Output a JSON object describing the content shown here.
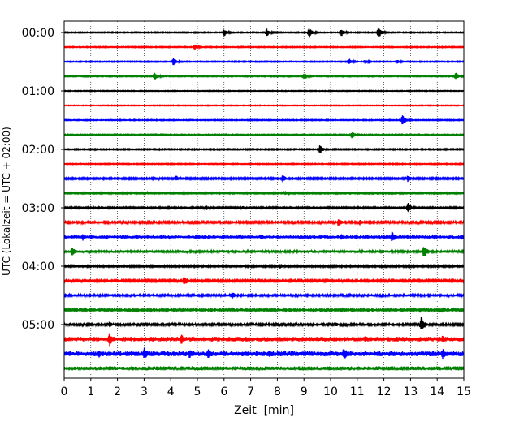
{
  "chart_data": {
    "type": "line",
    "title": "",
    "xlabel": "Zeit  [min]",
    "ylabel": "UTC (Lokalzeit = UTC + 02:00)",
    "xlim": [
      0,
      15
    ],
    "x_ticks": [
      "0",
      "1",
      "2",
      "3",
      "4",
      "5",
      "6",
      "7",
      "8",
      "9",
      "10",
      "11",
      "12",
      "13",
      "14",
      "15"
    ],
    "y_tick_labels": [
      "00:00",
      "01:00",
      "02:00",
      "03:00",
      "04:00",
      "05:00"
    ],
    "y_tick_rows": [
      0,
      4,
      8,
      12,
      16,
      20
    ],
    "grid": "vertical dotted",
    "row_interval_minutes": 15,
    "rows": [
      {
        "start": "00:00",
        "color": "#000000",
        "noise": 0.6,
        "events": [
          [
            6.0,
            5
          ],
          [
            7.6,
            5
          ],
          [
            9.2,
            7
          ],
          [
            10.4,
            5
          ],
          [
            11.8,
            7
          ]
        ]
      },
      {
        "start": "00:15",
        "color": "#ff0000",
        "noise": 0.6,
        "events": [
          [
            4.9,
            4
          ]
        ]
      },
      {
        "start": "00:30",
        "color": "#0000ff",
        "noise": 0.6,
        "events": [
          [
            4.1,
            5
          ],
          [
            10.7,
            4
          ],
          [
            11.3,
            3
          ],
          [
            12.5,
            3
          ]
        ]
      },
      {
        "start": "00:45",
        "color": "#008000",
        "noise": 0.6,
        "events": [
          [
            3.4,
            5
          ],
          [
            9.0,
            5
          ],
          [
            14.7,
            5
          ]
        ]
      },
      {
        "start": "01:00",
        "color": "#000000",
        "noise": 0.5,
        "events": []
      },
      {
        "start": "01:15",
        "color": "#ff0000",
        "noise": 0.5,
        "events": []
      },
      {
        "start": "01:30",
        "color": "#0000ff",
        "noise": 0.6,
        "events": [
          [
            12.7,
            7
          ]
        ]
      },
      {
        "start": "01:45",
        "color": "#008000",
        "noise": 0.6,
        "events": [
          [
            10.8,
            5
          ]
        ]
      },
      {
        "start": "02:00",
        "color": "#000000",
        "noise": 0.7,
        "events": [
          [
            9.6,
            6
          ]
        ]
      },
      {
        "start": "02:15",
        "color": "#ff0000",
        "noise": 0.6,
        "events": []
      },
      {
        "start": "02:30",
        "color": "#0000ff",
        "noise": 1.0,
        "events": [
          [
            4.2,
            4
          ],
          [
            8.2,
            5
          ],
          [
            12.9,
            5
          ]
        ]
      },
      {
        "start": "02:45",
        "color": "#008000",
        "noise": 0.8,
        "events": [
          [
            3.0,
            3
          ],
          [
            8.3,
            3
          ]
        ]
      },
      {
        "start": "03:00",
        "color": "#000000",
        "noise": 0.9,
        "events": [
          [
            5.3,
            4
          ],
          [
            6.7,
            3
          ],
          [
            12.9,
            7
          ]
        ]
      },
      {
        "start": "03:15",
        "color": "#ff0000",
        "noise": 1.3,
        "events": [
          [
            10.3,
            6
          ],
          [
            11.1,
            4
          ]
        ]
      },
      {
        "start": "03:30",
        "color": "#0000ff",
        "noise": 1.6,
        "events": [
          [
            0.7,
            5
          ],
          [
            2.3,
            3
          ],
          [
            7.4,
            4
          ],
          [
            10.4,
            4
          ],
          [
            12.3,
            8
          ],
          [
            14.9,
            4
          ]
        ]
      },
      {
        "start": "03:45",
        "color": "#008000",
        "noise": 1.6,
        "events": [
          [
            0.3,
            6
          ],
          [
            13.5,
            9
          ]
        ]
      },
      {
        "start": "04:00",
        "color": "#000000",
        "noise": 1.0,
        "events": [
          [
            8.1,
            4
          ]
        ]
      },
      {
        "start": "04:15",
        "color": "#ff0000",
        "noise": 1.2,
        "events": [
          [
            4.5,
            7
          ],
          [
            5.0,
            3
          ]
        ]
      },
      {
        "start": "04:30",
        "color": "#0000ff",
        "noise": 1.4,
        "events": [
          [
            6.3,
            5
          ]
        ]
      },
      {
        "start": "04:45",
        "color": "#008000",
        "noise": 1.3,
        "events": [
          [
            5.5,
            3
          ]
        ]
      },
      {
        "start": "05:00",
        "color": "#000000",
        "noise": 1.3,
        "events": [
          [
            1.7,
            4
          ],
          [
            10.2,
            3
          ],
          [
            13.4,
            10
          ]
        ]
      },
      {
        "start": "05:15",
        "color": "#ff0000",
        "noise": 2.8,
        "events": [
          [
            1.7,
            9
          ],
          [
            4.4,
            7
          ],
          [
            11.3,
            4
          ],
          [
            14.2,
            5
          ]
        ]
      },
      {
        "start": "05:30",
        "color": "#0000ff",
        "noise": 3.0,
        "events": [
          [
            1.3,
            5
          ],
          [
            3.0,
            9
          ],
          [
            4.7,
            6
          ],
          [
            5.4,
            6
          ],
          [
            7.7,
            5
          ],
          [
            10.5,
            9
          ],
          [
            14.2,
            7
          ]
        ]
      },
      {
        "start": "05:45",
        "color": "#008000",
        "noise": 2.5,
        "events": [
          [
            1.7,
            3
          ],
          [
            5.0,
            3
          ],
          [
            9.0,
            3
          ]
        ]
      }
    ]
  }
}
